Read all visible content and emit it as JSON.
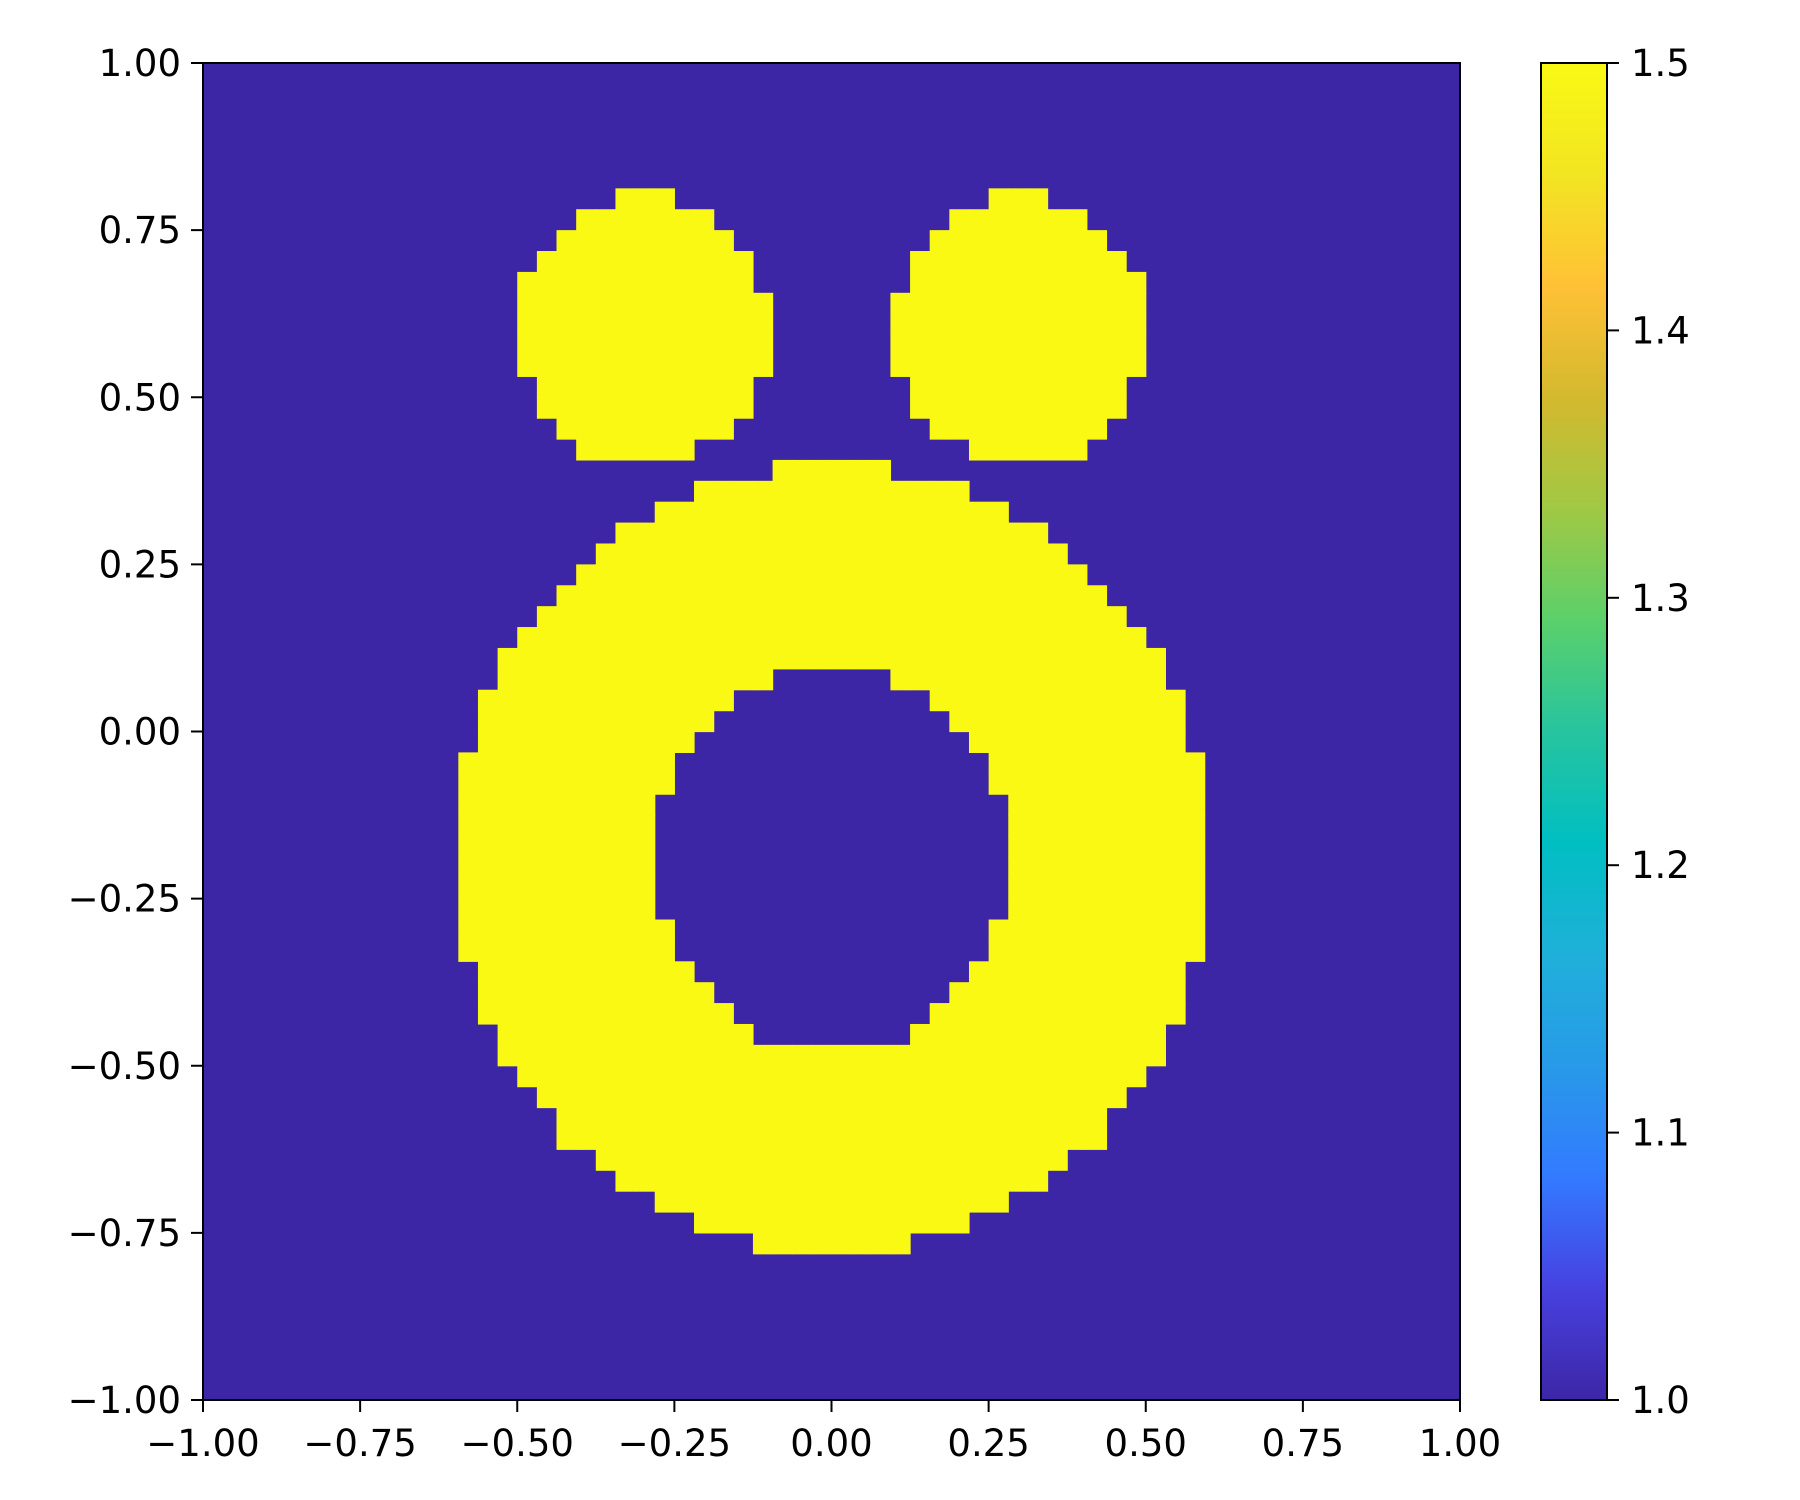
{
  "chart_data": {
    "type": "heatmap",
    "title": "",
    "xlabel": "",
    "ylabel": "",
    "xlim": [
      -1.0,
      1.0
    ],
    "ylim": [
      -1.0,
      1.0
    ],
    "x_ticks": [
      "−1.00",
      "−0.75",
      "−0.50",
      "−0.25",
      "0.00",
      "0.25",
      "0.50",
      "0.75",
      "1.00"
    ],
    "y_ticks": [
      "−1.00",
      "−0.75",
      "−0.50",
      "−0.25",
      "0.00",
      "0.25",
      "0.50",
      "0.75",
      "1.00"
    ],
    "grid": false,
    "background_value": 1.0,
    "shapes": [
      {
        "shape": "ring",
        "center": [
          0.0,
          -0.19
        ],
        "outer_radius_x": 0.6,
        "outer_radius_y": 0.59,
        "inner_radius_x": 0.28,
        "inner_radius_y": 0.29,
        "value": 1.5
      },
      {
        "shape": "disk",
        "center": [
          -0.3,
          0.6
        ],
        "radius": 0.2,
        "value": 1.5
      },
      {
        "shape": "disk",
        "center": [
          0.3,
          0.6
        ],
        "radius": 0.2,
        "value": 1.5
      }
    ],
    "colorbar": {
      "min": 1.0,
      "max": 1.5,
      "ticks": [
        "1.0",
        "1.1",
        "1.2",
        "1.3",
        "1.4",
        "1.5"
      ],
      "colors": [
        "#3d26a6",
        "#4741e0",
        "#337aff",
        "#279ae8",
        "#1fb0d9",
        "#00bfc2",
        "#27c49f",
        "#5bd06b",
        "#a1c844",
        "#d4b92e",
        "#ffc136",
        "#f2e522",
        "#f9f914"
      ]
    }
  }
}
